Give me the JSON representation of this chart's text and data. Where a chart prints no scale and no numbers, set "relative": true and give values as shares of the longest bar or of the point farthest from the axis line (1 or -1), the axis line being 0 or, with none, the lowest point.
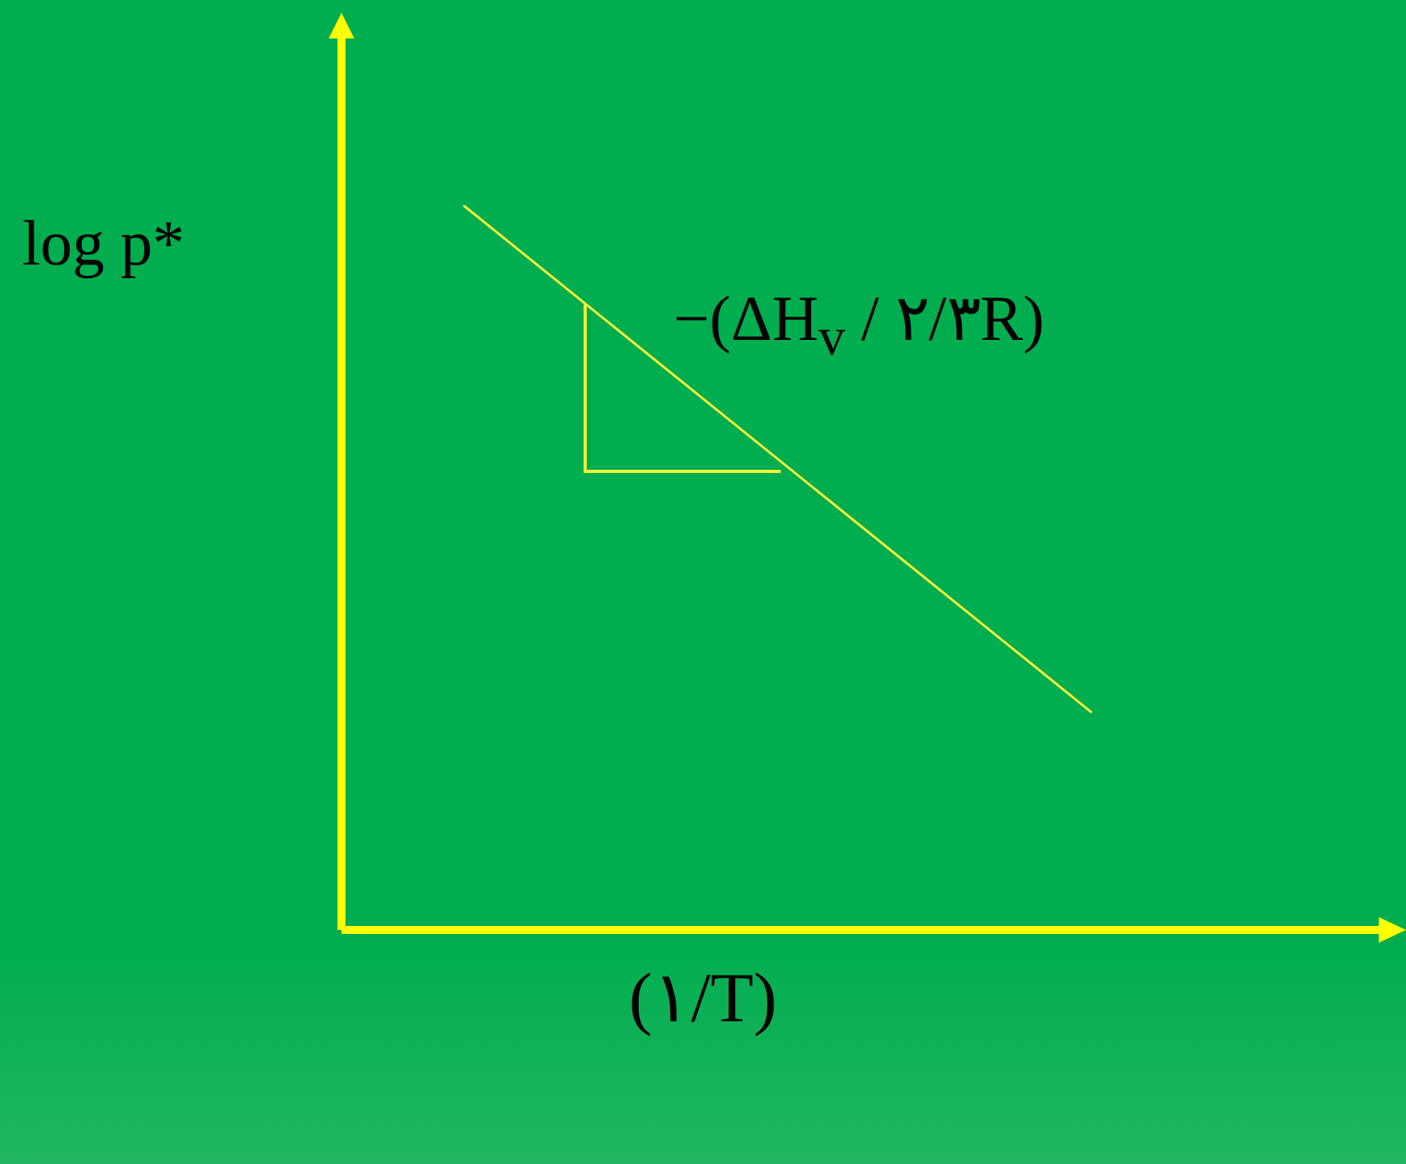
{
  "chart_data": {
    "type": "line",
    "relative": true,
    "categories": [
      null,
      null
    ],
    "series": [
      {
        "color": "#f2f23a",
        "values": [
          1,
          0.3
        ]
      }
    ],
    "marker": "none",
    "ylabel": "log p*",
    "xlabel": "(١/T)",
    "annotations": [
      "−(ΔH$_{v}$ / ٢/٣R)"
    ]
  }
}
